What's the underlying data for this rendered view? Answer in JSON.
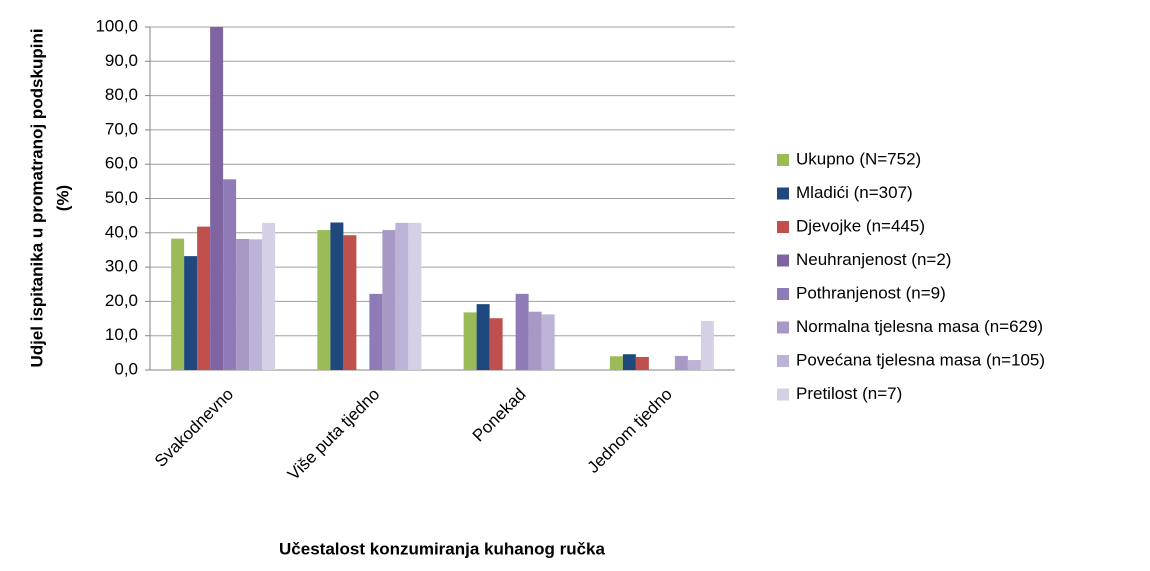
{
  "chart_data": {
    "type": "bar",
    "x_label": "Učestalost konzumiranja kuhanog ručka",
    "y_label": [
      "Udjel ispitanika u promatranoj podskupini",
      "(%)"
    ],
    "categories": [
      "Svakodnevno",
      "Više puta tjedno",
      "Ponekad",
      "Jednom tjedno"
    ],
    "series": [
      {
        "name": "Ukupno (N=752)",
        "color": "#9bbb59",
        "values": [
          38.3,
          40.8,
          16.8,
          4.0
        ]
      },
      {
        "name": "Mladići (n=307)",
        "color": "#1f497d",
        "values": [
          33.2,
          43.0,
          19.2,
          4.6
        ]
      },
      {
        "name": "Djevojke (n=445)",
        "color": "#c0504d",
        "values": [
          41.8,
          39.3,
          15.1,
          3.8
        ]
      },
      {
        "name": "Neuhranjenost (n=2)",
        "color": "#8064a2",
        "values": [
          100,
          0,
          0,
          0
        ]
      },
      {
        "name": "Pothranjenost (n=9)",
        "color": "#8f7bb5",
        "values": [
          55.6,
          22.2,
          22.2,
          0
        ]
      },
      {
        "name": "Normalna tjelesna masa (n=629)",
        "color": "#a898c6",
        "values": [
          38.2,
          40.8,
          17.0,
          4.1
        ]
      },
      {
        "name": "Povećana tjelesna masa (n=105)",
        "color": "#bdb3d6",
        "values": [
          38.1,
          42.9,
          16.2,
          2.9
        ]
      },
      {
        "name": "Pretilost (n=7)",
        "color": "#d6d0e6",
        "values": [
          42.9,
          42.9,
          0,
          14.3
        ]
      }
    ],
    "ylim": [
      0,
      100
    ],
    "yticks": [
      {
        "value": 0,
        "label": "0,0"
      },
      {
        "value": 10,
        "label": "10,0"
      },
      {
        "value": 20,
        "label": "20,0"
      },
      {
        "value": 30,
        "label": "30,0"
      },
      {
        "value": 40,
        "label": "40,0"
      },
      {
        "value": 50,
        "label": "50,0"
      },
      {
        "value": 60,
        "label": "60,0"
      },
      {
        "value": 70,
        "label": "70,0"
      },
      {
        "value": 80,
        "label": "80,0"
      },
      {
        "value": 90,
        "label": "90,0"
      },
      {
        "value": 100,
        "label": "100,0"
      }
    ],
    "grid": true,
    "legend": "right"
  }
}
